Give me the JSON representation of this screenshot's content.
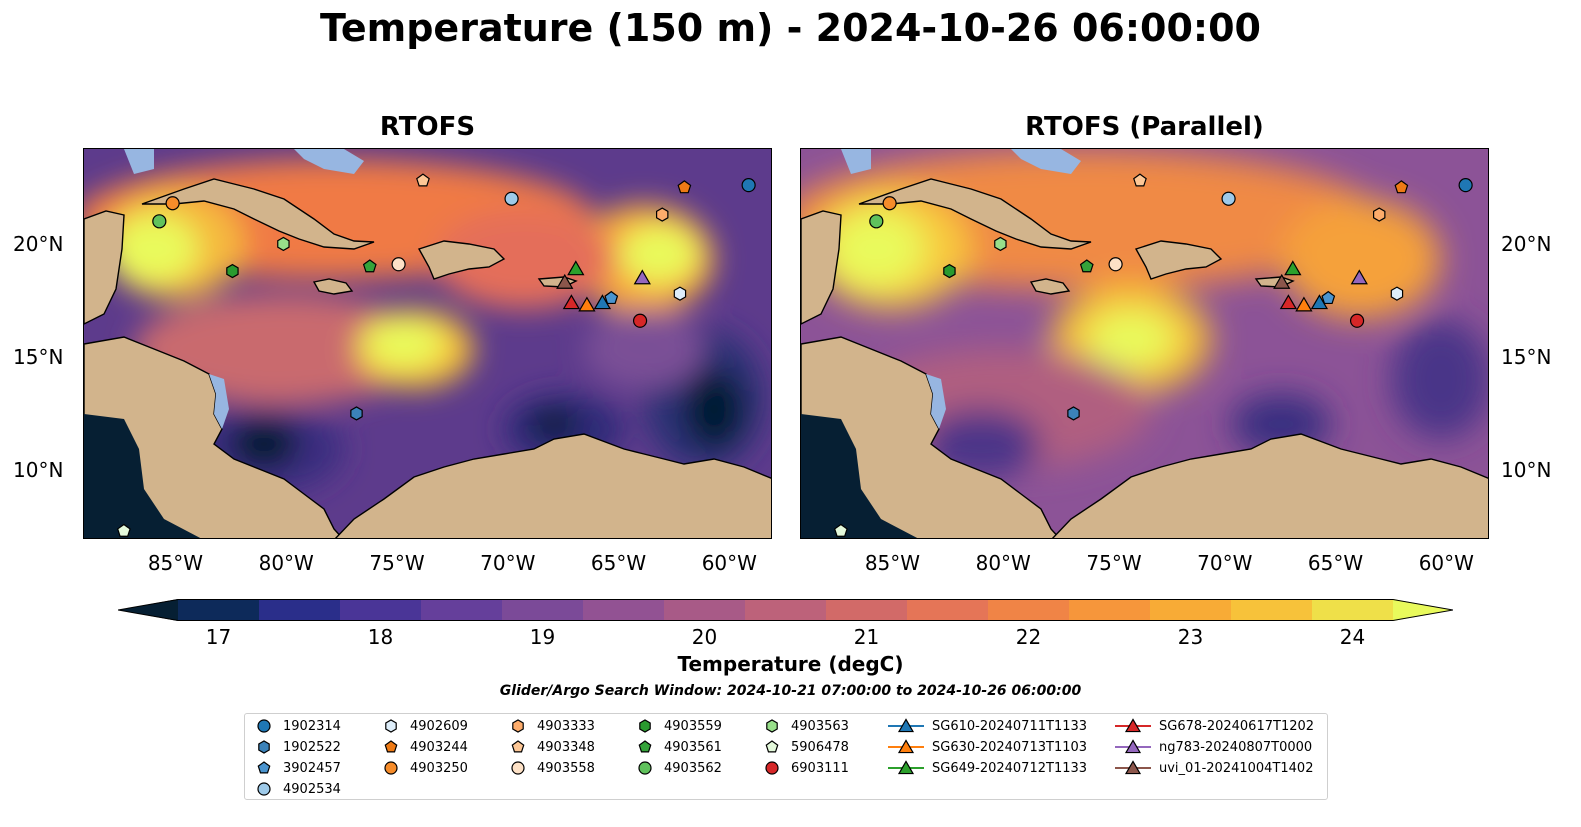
{
  "title": "Temperature (150 m) - 2024-10-26 06:00:00",
  "panels": [
    {
      "title": "RTOFS"
    },
    {
      "title": "RTOFS (Parallel)"
    }
  ],
  "lon_ticks": [
    "85°W",
    "80°W",
    "75°W",
    "70°W",
    "65°W",
    "60°W"
  ],
  "lat_ticks": [
    "20°N",
    "15°N",
    "10°N"
  ],
  "colorbar": {
    "label": "Temperature (degC)",
    "ticks": [
      "17",
      "18",
      "19",
      "20",
      "21",
      "22",
      "23",
      "24"
    ],
    "range": [
      16.75,
      24.5
    ]
  },
  "search_window": "Glider/Argo Search Window: 2024-10-21 07:00:00 to 2024-10-26 06:00:00",
  "colors": {
    "land": "#d2b48c",
    "shelf": "#97b6e1",
    "cold": "#061f33",
    "warm": "#e9fa5c"
  },
  "legend": [
    {
      "label": "1902314",
      "marker": "circle",
      "color": "#1f77b4"
    },
    {
      "label": "1902522",
      "marker": "hexagon",
      "color": "#3b82b9"
    },
    {
      "label": "3902457",
      "marker": "pentagon",
      "color": "#4a94cf"
    },
    {
      "label": "4902534",
      "marker": "circle",
      "color": "#9ecae9"
    },
    {
      "label": "4902609",
      "marker": "hexagon",
      "color": "#deeefa"
    },
    {
      "label": "4903244",
      "marker": "pentagon",
      "color": "#ee7a15"
    },
    {
      "label": "4903250",
      "marker": "circle",
      "color": "#f68c2a"
    },
    {
      "label": "4903333",
      "marker": "hexagon",
      "color": "#fdac6b"
    },
    {
      "label": "4903348",
      "marker": "pentagon",
      "color": "#fdc796"
    },
    {
      "label": "4903558",
      "marker": "circle",
      "color": "#fde1c6"
    },
    {
      "label": "4903559",
      "marker": "hexagon",
      "color": "#2a9a2f"
    },
    {
      "label": "4903561",
      "marker": "pentagon",
      "color": "#35a33a"
    },
    {
      "label": "4903562",
      "marker": "circle",
      "color": "#60c25c"
    },
    {
      "label": "4903563",
      "marker": "hexagon",
      "color": "#98df8a"
    },
    {
      "label": "5906478",
      "marker": "pentagon",
      "color": "#e4f9db"
    },
    {
      "label": "6903111",
      "marker": "circle",
      "color": "#d62728"
    },
    {
      "label": "SG610-20240711T1133",
      "marker": "triangle",
      "color": "#1f77b4"
    },
    {
      "label": "SG630-20240713T1103",
      "marker": "triangle",
      "color": "#ff7f0e"
    },
    {
      "label": "SG649-20240712T1133",
      "marker": "triangle",
      "color": "#2ca02c"
    },
    {
      "label": "SG678-20240617T1202",
      "marker": "triangle",
      "color": "#d62728"
    },
    {
      "label": "ng783-20240807T0000",
      "marker": "triangle",
      "color": "#9467bd"
    },
    {
      "label": "uvi_01-20241004T1402",
      "marker": "triangle",
      "color": "#8c564b"
    }
  ],
  "observations": [
    {
      "id": "1902314",
      "lon": -59.1,
      "lat": 22.7
    },
    {
      "id": "1902522",
      "lon": -76.8,
      "lat": 12.6
    },
    {
      "id": "3902457",
      "lon": -65.3,
      "lat": 17.7
    },
    {
      "id": "4902534",
      "lon": -69.8,
      "lat": 22.1
    },
    {
      "id": "4902609",
      "lon": -62.2,
      "lat": 17.9
    },
    {
      "id": "4903244",
      "lon": -62.0,
      "lat": 22.6
    },
    {
      "id": "4903250",
      "lon": -85.1,
      "lat": 21.9
    },
    {
      "id": "4903333",
      "lon": -63.0,
      "lat": 21.4
    },
    {
      "id": "4903348",
      "lon": -73.8,
      "lat": 22.9
    },
    {
      "id": "4903558",
      "lon": -74.9,
      "lat": 19.2
    },
    {
      "id": "4903559",
      "lon": -82.4,
      "lat": 18.9
    },
    {
      "id": "4903561",
      "lon": -76.2,
      "lat": 19.1
    },
    {
      "id": "4903562",
      "lon": -85.7,
      "lat": 21.1
    },
    {
      "id": "4903563",
      "lon": -80.1,
      "lat": 20.1
    },
    {
      "id": "5906478",
      "lon": -87.3,
      "lat": 7.4
    },
    {
      "id": "6903111",
      "lon": -64.0,
      "lat": 16.7
    },
    {
      "id": "SG610-20240711T1133",
      "lon": -65.7,
      "lat": 17.5
    },
    {
      "id": "SG630-20240713T1103",
      "lon": -66.4,
      "lat": 17.4
    },
    {
      "id": "SG649-20240712T1133",
      "lon": -66.9,
      "lat": 19.0
    },
    {
      "id": "SG678-20240617T1202",
      "lon": -67.1,
      "lat": 17.5
    },
    {
      "id": "ng783-20240807T0000",
      "lon": -63.9,
      "lat": 18.6
    },
    {
      "id": "uvi_01-20241004T1402",
      "lon": -67.4,
      "lat": 18.4
    }
  ]
}
